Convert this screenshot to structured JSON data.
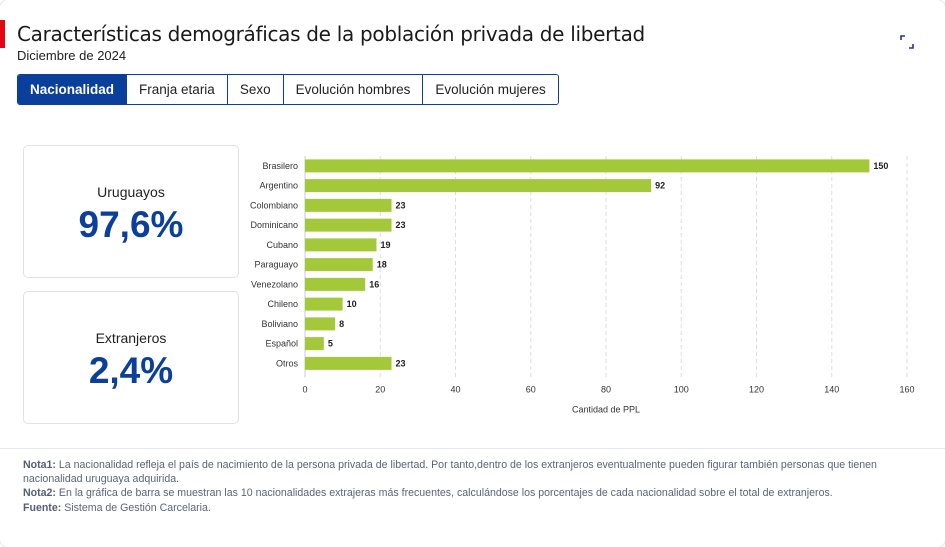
{
  "header": {
    "title": "Características demográficas de la población privada de libertad",
    "subtitle": "Diciembre de 2024",
    "accent_color": "#e30613",
    "expand_icon": "expand-icon"
  },
  "tabs": [
    {
      "label": "Nacionalidad",
      "active": true
    },
    {
      "label": "Franja etaria",
      "active": false
    },
    {
      "label": "Sexo",
      "active": false
    },
    {
      "label": "Evolución hombres",
      "active": false
    },
    {
      "label": "Evolución mujeres",
      "active": false
    }
  ],
  "stats": {
    "uruguayos": {
      "label": "Uruguayos",
      "value": "97,6%"
    },
    "extranjeros": {
      "label": "Extranjeros",
      "value": "2,4%"
    }
  },
  "chart_data": {
    "type": "bar",
    "orientation": "horizontal",
    "categories": [
      "Brasilero",
      "Argentino",
      "Colombiano",
      "Dominicano",
      "Cubano",
      "Paraguayo",
      "Venezolano",
      "Chileno",
      "Boliviano",
      "Español",
      "Otros"
    ],
    "values": [
      150,
      92,
      23,
      23,
      19,
      18,
      16,
      10,
      8,
      5,
      23
    ],
    "xlabel": "Cantidad de PPL",
    "xlim": [
      0,
      160
    ],
    "xticks": [
      0,
      20,
      40,
      60,
      80,
      100,
      120,
      140,
      160
    ],
    "grid": "vertical dashed",
    "bar_color": "#a3c93a"
  },
  "notes": [
    {
      "label": "Nota1:",
      "text": " La nacionalidad refleja el país de nacimiento de la persona privada de libertad. Por tanto,dentro de los extranjeros eventualmente pueden figurar también personas que tienen nacionalidad uruguaya adquirida."
    },
    {
      "label": "Nota2:",
      "text": " En la gráfica de barra se muestran las 10 nacionalidades extrajeras más frecuentes, calculándose los porcentajes de cada nacionalidad sobre el total de extranjeros."
    },
    {
      "label": "Fuente:",
      "text": " Sistema de Gestión Carcelaria."
    }
  ]
}
